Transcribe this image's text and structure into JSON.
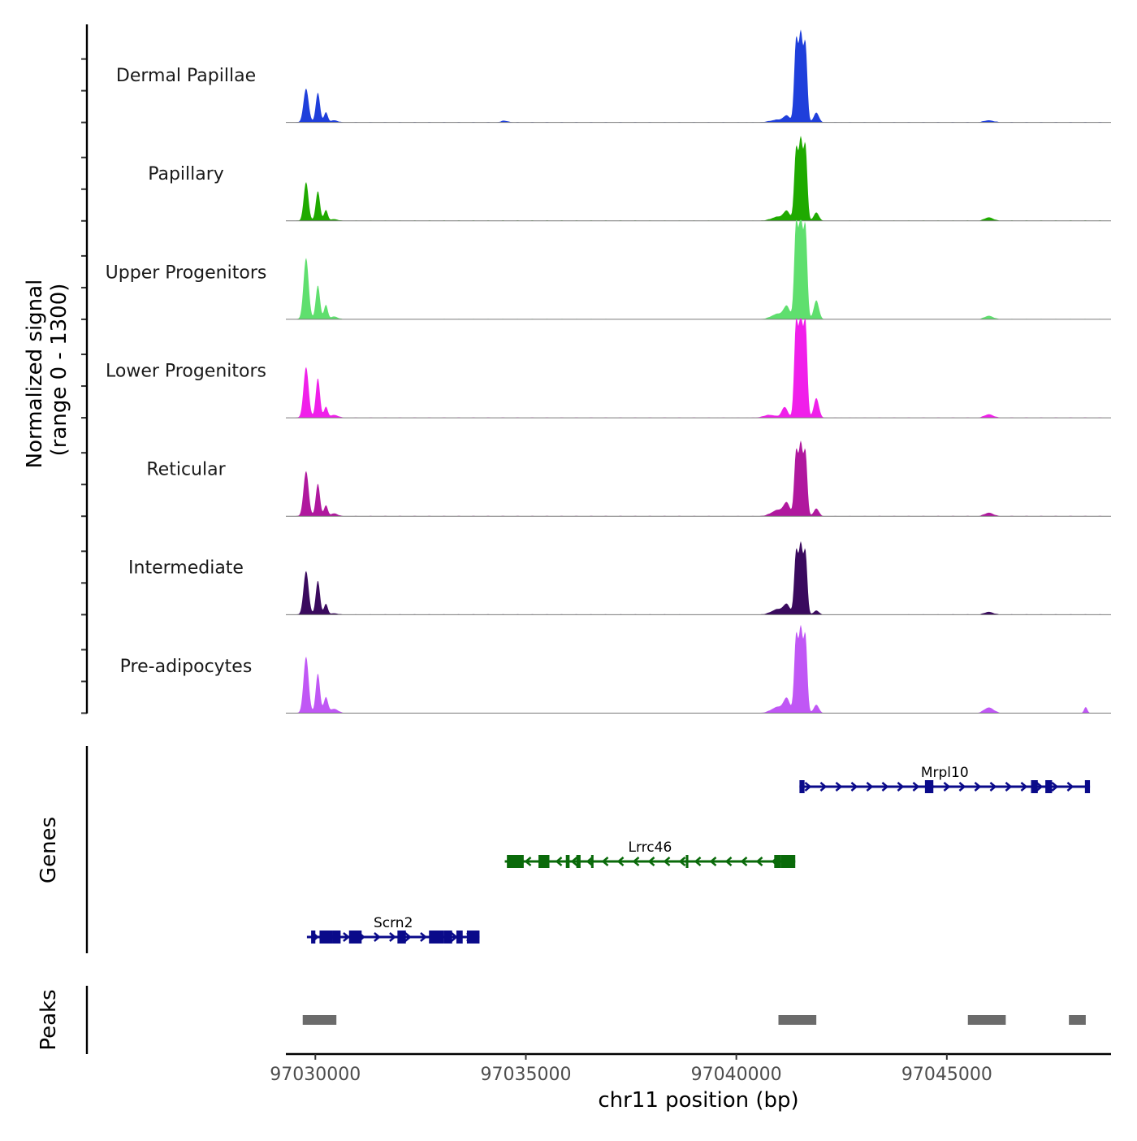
{
  "chart_data": {
    "type": "area",
    "title": "",
    "chromosome": "chr11",
    "xlabel": "chr11 position (bp)",
    "xlim": [
      97029300,
      97048900
    ],
    "xticks": [
      97030000,
      97035000,
      97040000,
      97045000
    ],
    "xtick_labels": [
      "97030000",
      "97035000",
      "97040000",
      "97045000"
    ],
    "signal_ylabel_line1": "Normalized signal",
    "signal_ylabel_line2": "(range 0 - 1300)",
    "ylim": [
      0,
      1300
    ],
    "series": [
      {
        "name": "Dermal Papillae",
        "color": "#1F3FDB",
        "peaks": [
          {
            "pos": 97029780,
            "height": 480,
            "width": 60
          },
          {
            "pos": 97030060,
            "height": 420,
            "width": 50
          },
          {
            "pos": 97030250,
            "height": 140,
            "width": 45
          },
          {
            "pos": 97030450,
            "height": 30,
            "width": 80
          },
          {
            "pos": 97034500,
            "height": 22,
            "width": 90
          },
          {
            "pos": 97041000,
            "height": 40,
            "width": 180
          },
          {
            "pos": 97041200,
            "height": 80,
            "width": 70
          },
          {
            "pos": 97041420,
            "height": 1150,
            "width": 45
          },
          {
            "pos": 97041530,
            "height": 1200,
            "width": 45
          },
          {
            "pos": 97041640,
            "height": 1100,
            "width": 45
          },
          {
            "pos": 97041900,
            "height": 140,
            "width": 60
          },
          {
            "pos": 97046000,
            "height": 30,
            "width": 110
          }
        ]
      },
      {
        "name": "Papillary",
        "color": "#1FAA00",
        "peaks": [
          {
            "pos": 97029780,
            "height": 550,
            "width": 55
          },
          {
            "pos": 97030060,
            "height": 420,
            "width": 50
          },
          {
            "pos": 97030250,
            "height": 150,
            "width": 45
          },
          {
            "pos": 97030450,
            "height": 25,
            "width": 80
          },
          {
            "pos": 97041000,
            "height": 60,
            "width": 160
          },
          {
            "pos": 97041200,
            "height": 120,
            "width": 70
          },
          {
            "pos": 97041420,
            "height": 1000,
            "width": 45
          },
          {
            "pos": 97041530,
            "height": 1100,
            "width": 45
          },
          {
            "pos": 97041640,
            "height": 1050,
            "width": 45
          },
          {
            "pos": 97041900,
            "height": 120,
            "width": 60
          },
          {
            "pos": 97046000,
            "height": 50,
            "width": 100
          }
        ]
      },
      {
        "name": "Upper Progenitors",
        "color": "#5FDF6E",
        "peaks": [
          {
            "pos": 97029780,
            "height": 870,
            "width": 60
          },
          {
            "pos": 97030060,
            "height": 480,
            "width": 50
          },
          {
            "pos": 97030250,
            "height": 200,
            "width": 45
          },
          {
            "pos": 97030450,
            "height": 40,
            "width": 80
          },
          {
            "pos": 97041000,
            "height": 80,
            "width": 160
          },
          {
            "pos": 97041200,
            "height": 160,
            "width": 70
          },
          {
            "pos": 97041420,
            "height": 1350,
            "width": 45
          },
          {
            "pos": 97041530,
            "height": 1380,
            "width": 45
          },
          {
            "pos": 97041640,
            "height": 1300,
            "width": 45
          },
          {
            "pos": 97041900,
            "height": 270,
            "width": 60
          },
          {
            "pos": 97046000,
            "height": 50,
            "width": 100
          }
        ]
      },
      {
        "name": "Lower Progenitors",
        "color": "#F01FEA",
        "peaks": [
          {
            "pos": 97029780,
            "height": 720,
            "width": 60
          },
          {
            "pos": 97030060,
            "height": 560,
            "width": 50
          },
          {
            "pos": 97030250,
            "height": 150,
            "width": 45
          },
          {
            "pos": 97030450,
            "height": 40,
            "width": 90
          },
          {
            "pos": 97040800,
            "height": 40,
            "width": 150
          },
          {
            "pos": 97041150,
            "height": 150,
            "width": 70
          },
          {
            "pos": 97041420,
            "height": 1350,
            "width": 45
          },
          {
            "pos": 97041530,
            "height": 1380,
            "width": 45
          },
          {
            "pos": 97041640,
            "height": 1350,
            "width": 45
          },
          {
            "pos": 97041900,
            "height": 280,
            "width": 60
          },
          {
            "pos": 97046000,
            "height": 50,
            "width": 100
          }
        ]
      },
      {
        "name": "Reticular",
        "color": "#B0189E",
        "peaks": [
          {
            "pos": 97029780,
            "height": 640,
            "width": 60
          },
          {
            "pos": 97030060,
            "height": 460,
            "width": 50
          },
          {
            "pos": 97030250,
            "height": 150,
            "width": 45
          },
          {
            "pos": 97030450,
            "height": 40,
            "width": 80
          },
          {
            "pos": 97041000,
            "height": 90,
            "width": 160
          },
          {
            "pos": 97041200,
            "height": 160,
            "width": 70
          },
          {
            "pos": 97041420,
            "height": 900,
            "width": 45
          },
          {
            "pos": 97041530,
            "height": 980,
            "width": 45
          },
          {
            "pos": 97041640,
            "height": 900,
            "width": 45
          },
          {
            "pos": 97041900,
            "height": 110,
            "width": 60
          },
          {
            "pos": 97046000,
            "height": 50,
            "width": 100
          }
        ]
      },
      {
        "name": "Intermediate",
        "color": "#3A0A5E",
        "peaks": [
          {
            "pos": 97029780,
            "height": 620,
            "width": 60
          },
          {
            "pos": 97030060,
            "height": 480,
            "width": 50
          },
          {
            "pos": 97030250,
            "height": 150,
            "width": 45
          },
          {
            "pos": 97030450,
            "height": 20,
            "width": 80
          },
          {
            "pos": 97041000,
            "height": 80,
            "width": 160
          },
          {
            "pos": 97041200,
            "height": 120,
            "width": 70
          },
          {
            "pos": 97041420,
            "height": 880,
            "width": 45
          },
          {
            "pos": 97041530,
            "height": 950,
            "width": 45
          },
          {
            "pos": 97041640,
            "height": 880,
            "width": 45
          },
          {
            "pos": 97041900,
            "height": 60,
            "width": 60
          },
          {
            "pos": 97046000,
            "height": 40,
            "width": 100
          }
        ]
      },
      {
        "name": "Pre-adipocytes",
        "color": "#C057F5",
        "peaks": [
          {
            "pos": 97029780,
            "height": 800,
            "width": 60
          },
          {
            "pos": 97030060,
            "height": 560,
            "width": 50
          },
          {
            "pos": 97030250,
            "height": 220,
            "width": 50
          },
          {
            "pos": 97030450,
            "height": 60,
            "width": 90
          },
          {
            "pos": 97041000,
            "height": 90,
            "width": 160
          },
          {
            "pos": 97041200,
            "height": 180,
            "width": 70
          },
          {
            "pos": 97041420,
            "height": 1080,
            "width": 45
          },
          {
            "pos": 97041530,
            "height": 1140,
            "width": 45
          },
          {
            "pos": 97041640,
            "height": 1080,
            "width": 45
          },
          {
            "pos": 97041900,
            "height": 120,
            "width": 60
          },
          {
            "pos": 97046000,
            "height": 80,
            "width": 110
          },
          {
            "pos": 97048300,
            "height": 80,
            "width": 40
          }
        ]
      }
    ],
    "genes_label": "Genes",
    "genes": [
      {
        "name": "Mrpl10",
        "strand": "+",
        "color": "#0A0A8A",
        "row": 0,
        "start": 97041500,
        "end": 97048400,
        "exons": [
          [
            97041500,
            97041620
          ],
          [
            97044480,
            97044680
          ],
          [
            97047000,
            97047160
          ],
          [
            97047340,
            97047500
          ],
          [
            97048280,
            97048400
          ]
        ]
      },
      {
        "name": "Lrrc46",
        "strand": "-",
        "color": "#0A6A0A",
        "row": 1,
        "start": 97034500,
        "end": 97041400,
        "exons": [
          [
            97034550,
            97034950
          ],
          [
            97035300,
            97035560
          ],
          [
            97035950,
            97036040
          ],
          [
            97036200,
            97036300
          ],
          [
            97036550,
            97036600
          ],
          [
            97038800,
            97038860
          ],
          [
            97040900,
            97041060
          ],
          [
            97041060,
            97041400
          ]
        ]
      },
      {
        "name": "Scrn2",
        "strand": "+",
        "color": "#0A0A8A",
        "row": 2,
        "start": 97029800,
        "end": 97033900,
        "exons": [
          [
            97029900,
            97030000
          ],
          [
            97030100,
            97030400
          ],
          [
            97030400,
            97030600
          ],
          [
            97030800,
            97031100
          ],
          [
            97031950,
            97032150
          ],
          [
            97032700,
            97033050
          ],
          [
            97033050,
            97033250
          ],
          [
            97033350,
            97033500
          ],
          [
            97033600,
            97033900
          ]
        ]
      }
    ],
    "peaks_label": "Peaks",
    "peak_regions": [
      [
        97029700,
        97030500
      ],
      [
        97041000,
        97041900
      ],
      [
        97045500,
        97046400
      ],
      [
        97047900,
        97048300
      ]
    ]
  }
}
